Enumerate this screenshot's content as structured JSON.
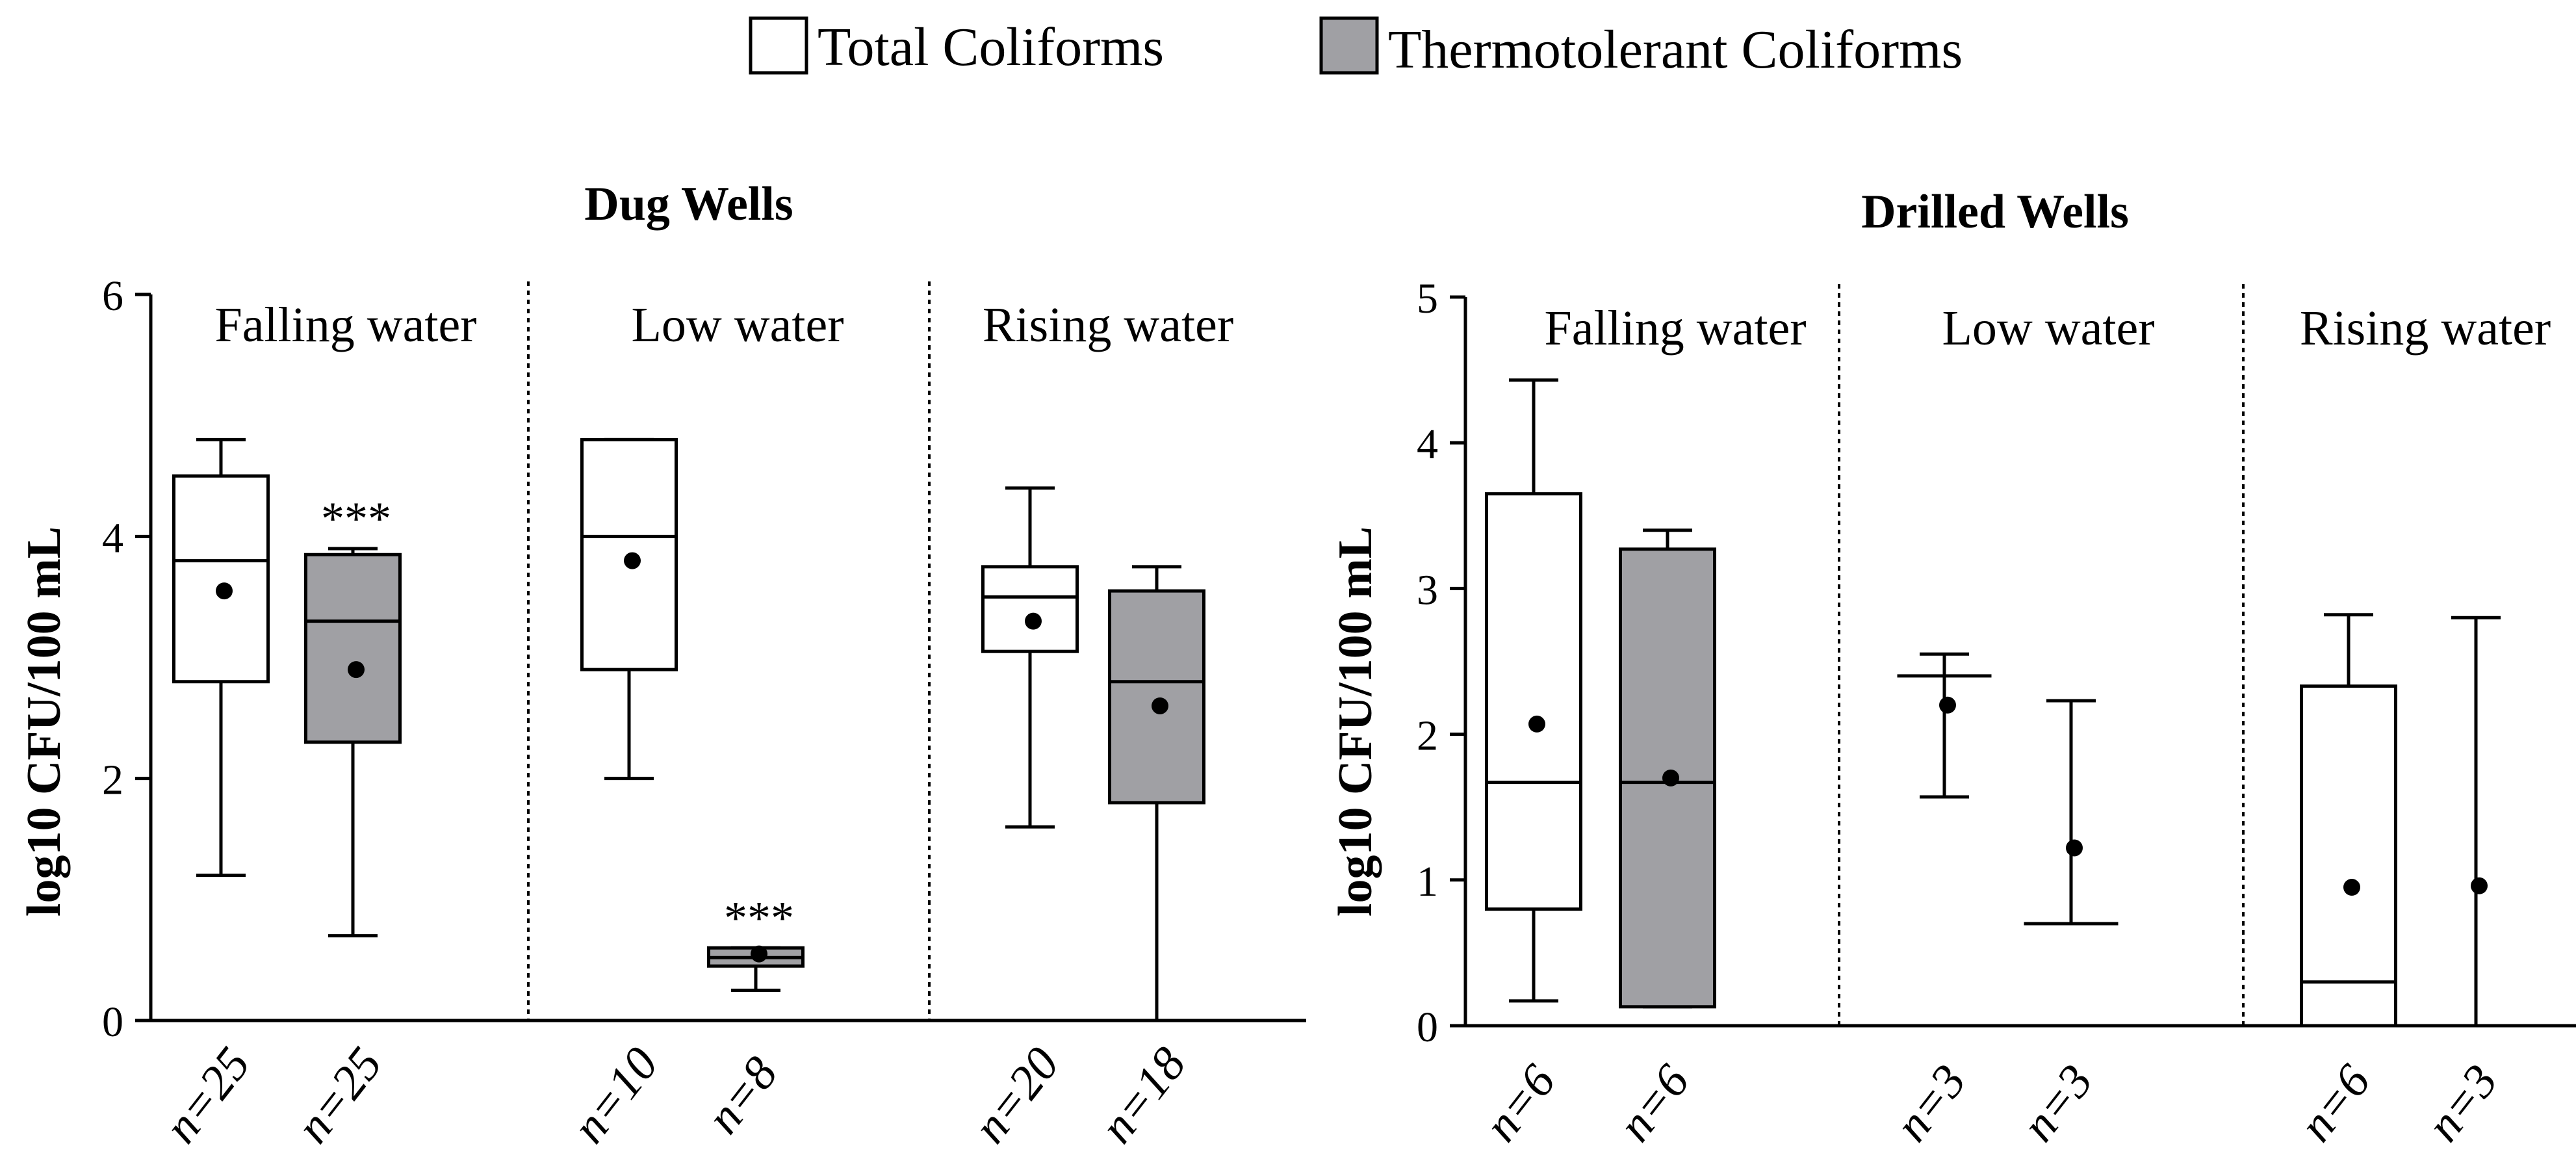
{
  "legend": {
    "position": "top-center",
    "entries": [
      {
        "label": "Total Coliforms",
        "color": "#ffffff"
      },
      {
        "label": "Thermotolerant Coliforms",
        "color": "#a0a0a4"
      }
    ]
  },
  "colors": {
    "total": "#ffffff",
    "thermo": "#a0a0a4",
    "stroke": "#000000"
  },
  "chart_data": [
    {
      "type": "box",
      "title": "Dug Wells",
      "ylabel": "log10 CFU/100 mL",
      "ylim": [
        0,
        6
      ],
      "yticks": [
        0,
        2,
        4,
        6
      ],
      "grid": false,
      "groups": [
        {
          "label": "Falling water",
          "boxes": [
            {
              "series": "Total Coliforms",
              "n_label": "n=25",
              "min": 1.2,
              "q1": 2.8,
              "median": 3.8,
              "q3": 4.5,
              "max": 4.8,
              "mean": 3.55,
              "annotation": ""
            },
            {
              "series": "Thermotolerant Coliforms",
              "n_label": "n=25",
              "min": 0.7,
              "q1": 2.3,
              "median": 3.3,
              "q3": 3.85,
              "max": 3.9,
              "mean": 2.9,
              "annotation": "***"
            }
          ]
        },
        {
          "label": "Low water",
          "boxes": [
            {
              "series": "Total Coliforms",
              "n_label": "n=10",
              "min": 2.0,
              "q1": 2.9,
              "median": 4.0,
              "q3": 4.8,
              "max": 4.8,
              "mean": 3.8,
              "annotation": ""
            },
            {
              "series": "Thermotolerant Coliforms",
              "n_label": "n=8",
              "min": 0.25,
              "q1": 0.45,
              "median": 0.52,
              "q3": 0.6,
              "max": 0.6,
              "mean": 0.55,
              "annotation": "***"
            }
          ]
        },
        {
          "label": "Rising water",
          "boxes": [
            {
              "series": "Total Coliforms",
              "n_label": "n=20",
              "min": 1.6,
              "q1": 3.05,
              "median": 3.5,
              "q3": 3.75,
              "max": 4.4,
              "mean": 3.3,
              "annotation": ""
            },
            {
              "series": "Thermotolerant Coliforms",
              "n_label": "n=18",
              "min": 0.0,
              "q1": 1.8,
              "median": 2.8,
              "q3": 3.55,
              "max": 3.75,
              "mean": 2.6,
              "annotation": ""
            }
          ]
        }
      ]
    },
    {
      "type": "box",
      "title": "Drilled Wells",
      "ylabel": "log10 CFU/100 mL",
      "ylim": [
        0,
        5
      ],
      "yticks": [
        0,
        1,
        2,
        3,
        4,
        5
      ],
      "grid": false,
      "groups": [
        {
          "label": "Falling water",
          "boxes": [
            {
              "series": "Total Coliforms",
              "n_label": "n=6",
              "min": 0.17,
              "q1": 0.8,
              "median": 1.67,
              "q3": 3.65,
              "max": 4.43,
              "mean": 2.07,
              "annotation": ""
            },
            {
              "series": "Thermotolerant Coliforms",
              "n_label": "n=6",
              "min": 0.13,
              "q1": 0.13,
              "median": 1.67,
              "q3": 3.27,
              "max": 3.4,
              "mean": 1.7,
              "annotation": ""
            }
          ]
        },
        {
          "label": "Low water",
          "boxes": [
            {
              "series": "Total Coliforms",
              "n_label": "n=3",
              "min": 1.57,
              "q1": 2.4,
              "median": 2.4,
              "q3": 2.4,
              "max": 2.55,
              "mean": 2.2,
              "annotation": ""
            },
            {
              "series": "Thermotolerant Coliforms",
              "n_label": "n=3",
              "min": 0.7,
              "q1": 0.7,
              "median": 0.7,
              "q3": 0.7,
              "max": 2.23,
              "mean": 1.22,
              "annotation": ""
            }
          ]
        },
        {
          "label": "Rising water",
          "boxes": [
            {
              "series": "Total Coliforms",
              "n_label": "n=6",
              "min": 0.0,
              "q1": 0.0,
              "median": 0.3,
              "q3": 2.33,
              "max": 2.82,
              "mean": 0.95,
              "annotation": ""
            },
            {
              "series": "Thermotolerant Coliforms",
              "n_label": "n=3",
              "min": 0.0,
              "q1": 0.0,
              "median": 0.0,
              "q3": 0.0,
              "max": 2.8,
              "mean": 0.96,
              "annotation": ""
            }
          ]
        }
      ]
    }
  ]
}
